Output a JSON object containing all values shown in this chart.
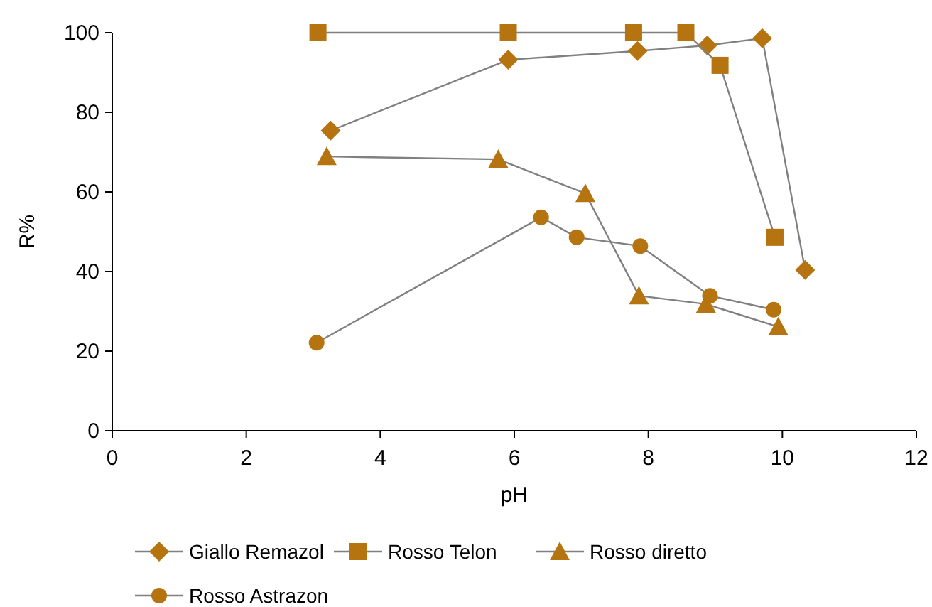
{
  "chart_data": {
    "type": "line",
    "xlabel": "pH",
    "ylabel": "R%",
    "xlim": [
      0,
      12
    ],
    "ylim": [
      0,
      100
    ],
    "xticks": [
      0,
      2,
      4,
      6,
      8,
      10,
      12
    ],
    "yticks": [
      0,
      20,
      40,
      60,
      80,
      100
    ],
    "grid": false,
    "legend": "bottom",
    "line_style": "solid",
    "series": [
      {
        "name": "Giallo Remazol",
        "color": "#b5740f",
        "marker": "diamond",
        "x": [
          3.26,
          5.91,
          7.84,
          8.88,
          9.7,
          10.34
        ],
        "values": [
          75.4,
          93.2,
          95.4,
          96.8,
          98.6,
          40.4
        ]
      },
      {
        "name": "Rosso Telon",
        "color": "#b5740f",
        "marker": "square",
        "x": [
          3.07,
          5.91,
          7.78,
          8.56,
          9.07,
          9.89
        ],
        "values": [
          100,
          100,
          100,
          100,
          91.8,
          48.6
        ]
      },
      {
        "name": "Rosso diretto",
        "color": "#b5740f",
        "marker": "triangle",
        "x": [
          3.2,
          5.76,
          7.06,
          7.86,
          8.86,
          9.94
        ],
        "values": [
          68.9,
          68.2,
          59.6,
          33.9,
          31.8,
          26.1
        ]
      },
      {
        "name": "Rosso Astrazon",
        "color": "#b5740f",
        "marker": "circle",
        "x": [
          3.05,
          6.4,
          6.93,
          7.88,
          8.92,
          9.87
        ],
        "values": [
          22.1,
          53.6,
          48.6,
          46.4,
          33.9,
          30.4
        ]
      }
    ]
  }
}
